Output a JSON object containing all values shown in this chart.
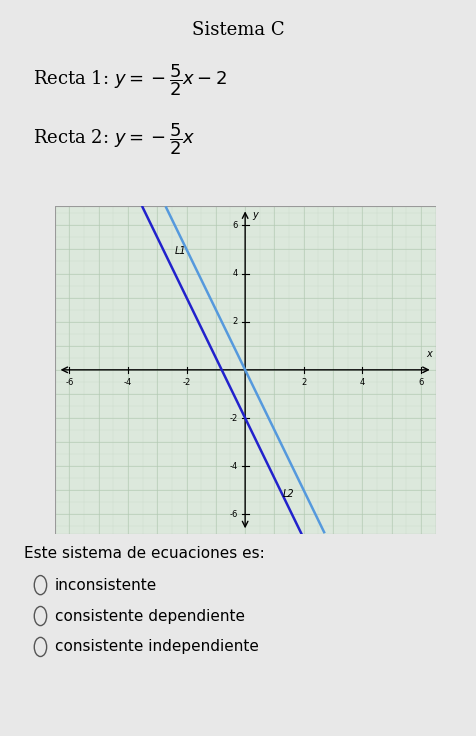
{
  "title": "Sistema C",
  "recta1_slope": -2.5,
  "recta1_intercept": -2,
  "recta2_slope": -2.5,
  "recta2_intercept": 0,
  "line1_color": "#2222cc",
  "line2_color": "#5599dd",
  "xlim": [
    -6.5,
    6.5
  ],
  "ylim": [
    -6.8,
    6.8
  ],
  "xticks": [
    -6,
    -4,
    -2,
    2,
    4,
    6
  ],
  "yticks": [
    -6,
    -4,
    -2,
    2,
    4,
    6
  ],
  "grid_minor_color": "#c8d8c8",
  "grid_major_color": "#b0c8b0",
  "plot_bg": "#dce8dc",
  "question_text": "Este sistema de ecuaciones es:",
  "options": [
    "inconsistente",
    "consistente dependiente",
    "consistente independiente"
  ],
  "L1_label": "L1",
  "L2_label": "L2",
  "figure_bg": "#e8e8e8",
  "border_color": "#999999"
}
